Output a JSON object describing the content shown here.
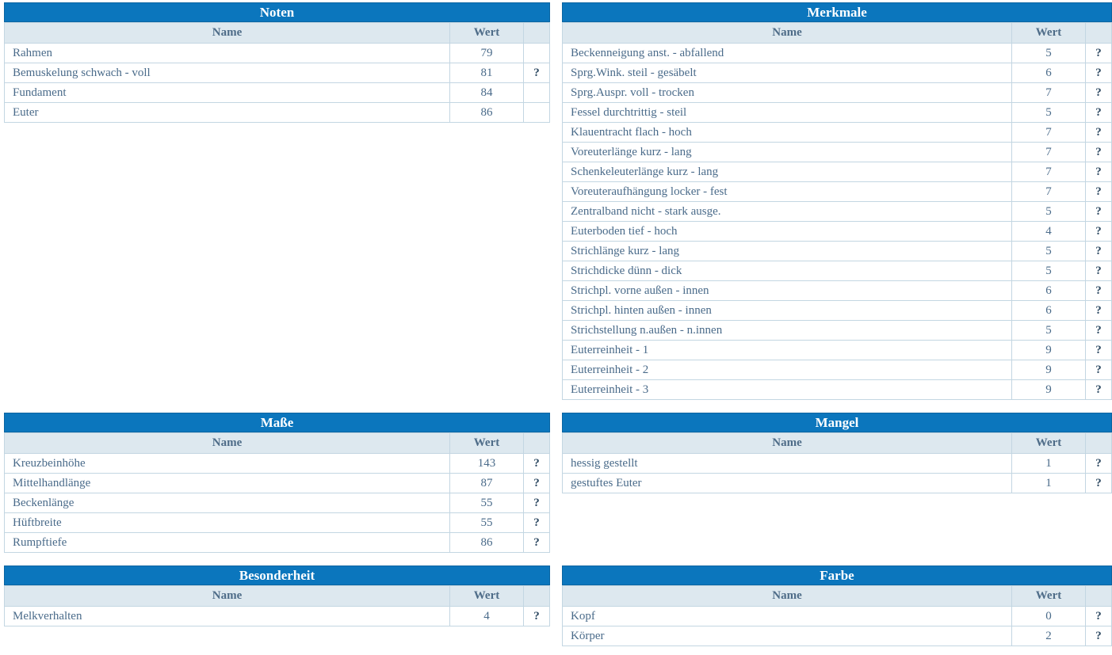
{
  "ui": {
    "columns": {
      "name": "Name",
      "value": "Wert"
    },
    "help_label": "?"
  },
  "colors": {
    "title_bar": "#0b76bd",
    "title_border": "#0a65a2",
    "title_text": "#ffffff",
    "header_bg": "#dde8ef",
    "border": "#c3d6e2",
    "text": "#4a6b8a",
    "header_text": "#4e6c88",
    "help": "#2e4a63",
    "page_bg": "#ffffff"
  },
  "tables": [
    {
      "id": "noten",
      "title": "Noten",
      "rows": [
        {
          "name": "Rahmen",
          "wert": "79",
          "help": false
        },
        {
          "name": "Bemuskelung schwach - voll",
          "wert": "81",
          "help": true
        },
        {
          "name": "Fundament",
          "wert": "84",
          "help": false
        },
        {
          "name": "Euter",
          "wert": "86",
          "help": false
        }
      ]
    },
    {
      "id": "merkmale",
      "title": "Merkmale",
      "rows": [
        {
          "name": "Beckenneigung anst. - abfallend",
          "wert": "5",
          "help": true
        },
        {
          "name": "Sprg.Wink. steil - gesäbelt",
          "wert": "6",
          "help": true
        },
        {
          "name": "Sprg.Auspr. voll - trocken",
          "wert": "7",
          "help": true
        },
        {
          "name": "Fessel durchtrittig - steil",
          "wert": "5",
          "help": true
        },
        {
          "name": "Klauentracht flach - hoch",
          "wert": "7",
          "help": true
        },
        {
          "name": "Voreuterlänge kurz - lang",
          "wert": "7",
          "help": true
        },
        {
          "name": "Schenkeleuterlänge kurz - lang",
          "wert": "7",
          "help": true
        },
        {
          "name": "Voreuteraufhängung locker - fest",
          "wert": "7",
          "help": true
        },
        {
          "name": "Zentralband nicht - stark ausge.",
          "wert": "5",
          "help": true
        },
        {
          "name": "Euterboden tief - hoch",
          "wert": "4",
          "help": true
        },
        {
          "name": "Strichlänge kurz - lang",
          "wert": "5",
          "help": true
        },
        {
          "name": "Strichdicke dünn - dick",
          "wert": "5",
          "help": true
        },
        {
          "name": "Strichpl. vorne außen - innen",
          "wert": "6",
          "help": true
        },
        {
          "name": "Strichpl. hinten außen - innen",
          "wert": "6",
          "help": true
        },
        {
          "name": "Strichstellung n.außen - n.innen",
          "wert": "5",
          "help": true
        },
        {
          "name": "Euterreinheit - 1",
          "wert": "9",
          "help": true
        },
        {
          "name": "Euterreinheit - 2",
          "wert": "9",
          "help": true
        },
        {
          "name": "Euterreinheit - 3",
          "wert": "9",
          "help": true
        }
      ]
    },
    {
      "id": "masse",
      "title": "Maße",
      "rows": [
        {
          "name": "Kreuzbeinhöhe",
          "wert": "143",
          "help": true
        },
        {
          "name": "Mittelhandlänge",
          "wert": "87",
          "help": true
        },
        {
          "name": "Beckenlänge",
          "wert": "55",
          "help": true
        },
        {
          "name": "Hüftbreite",
          "wert": "55",
          "help": true
        },
        {
          "name": "Rumpftiefe",
          "wert": "86",
          "help": true
        }
      ]
    },
    {
      "id": "mangel",
      "title": "Mangel",
      "rows": [
        {
          "name": "hessig gestellt",
          "wert": "1",
          "help": true
        },
        {
          "name": "gestuftes Euter",
          "wert": "1",
          "help": true
        }
      ]
    },
    {
      "id": "besonderheit",
      "title": "Besonderheit",
      "rows": [
        {
          "name": "Melkverhalten",
          "wert": "4",
          "help": true
        }
      ]
    },
    {
      "id": "farbe",
      "title": "Farbe",
      "rows": [
        {
          "name": "Kopf",
          "wert": "0",
          "help": true
        },
        {
          "name": "Körper",
          "wert": "2",
          "help": true
        }
      ]
    }
  ]
}
